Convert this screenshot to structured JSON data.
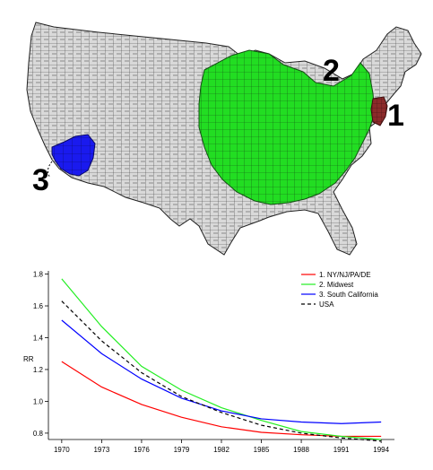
{
  "map": {
    "region_labels": [
      "1",
      "2",
      "3"
    ],
    "colors": {
      "background_land": "#d9d9d9",
      "county_lines": "#3a3a3a",
      "region_1": "#8b2a2a",
      "region_2": "#22dd22",
      "region_3": "#1a1aee"
    }
  },
  "chart_data": {
    "type": "line",
    "xlabel": "",
    "ylabel": "RR",
    "x": [
      1970,
      1973,
      1976,
      1979,
      1982,
      1985,
      1988,
      1991,
      1994
    ],
    "xticks": [
      "1970",
      "1973",
      "1976",
      "1979",
      "1982",
      "1985",
      "1988",
      "1991",
      "1994"
    ],
    "yticks": [
      "0.8",
      "1.0",
      "1.2",
      "1.4",
      "1.6",
      "1.8"
    ],
    "xlim": [
      1969,
      1995
    ],
    "ylim": [
      0.76,
      1.82
    ],
    "grid": false,
    "legend_position": "top-right",
    "series": [
      {
        "name": "1. NY/NJ/PA/DE",
        "color": "#ff0000",
        "dash": "solid",
        "values": [
          1.25,
          1.09,
          0.98,
          0.9,
          0.84,
          0.805,
          0.79,
          0.78,
          0.78
        ]
      },
      {
        "name": "2. Midwest",
        "color": "#22ee22",
        "dash": "solid",
        "values": [
          1.77,
          1.47,
          1.22,
          1.07,
          0.96,
          0.88,
          0.81,
          0.78,
          0.76
        ]
      },
      {
        "name": "3. South California",
        "color": "#0000ff",
        "dash": "solid",
        "values": [
          1.51,
          1.3,
          1.14,
          1.02,
          0.94,
          0.89,
          0.87,
          0.86,
          0.87
        ]
      },
      {
        "name": "USA",
        "color": "#000000",
        "dash": "dashed",
        "values": [
          1.63,
          1.38,
          1.18,
          1.03,
          0.93,
          0.85,
          0.8,
          0.77,
          0.75
        ]
      }
    ]
  }
}
